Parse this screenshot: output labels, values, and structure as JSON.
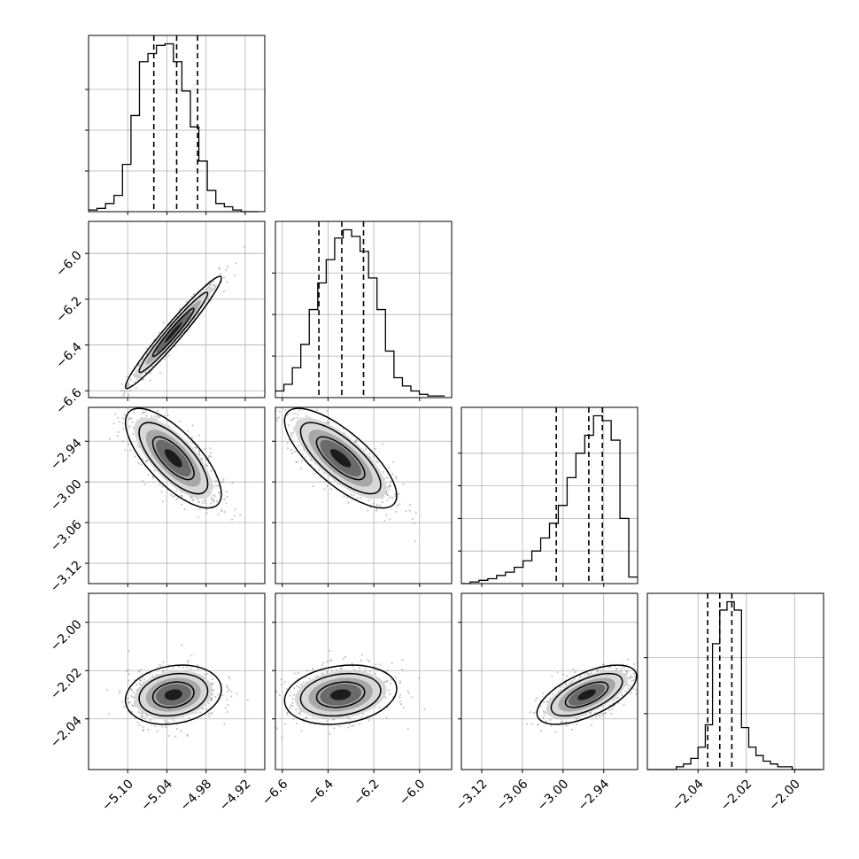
{
  "chart_data": {
    "type": "corner",
    "grid": true,
    "colors": {
      "frame": "#000000",
      "grid": "#b0b0b0",
      "scatter": "#9a9a9a",
      "contour": "#000000",
      "quantile": "#000000"
    },
    "parameters": [
      {
        "range": [
          -5.16,
          -4.89
        ],
        "ticks": [
          -5.1,
          -5.04,
          -4.98,
          -4.92
        ],
        "tick_labels": [
          "−5.10",
          "−5.04",
          "−4.98",
          "−4.92"
        ],
        "quantiles": [
          -5.06,
          -5.025,
          -4.993
        ],
        "hist_bins": [
          -5.16,
          -5.147,
          -5.134,
          -5.121,
          -5.108,
          -5.095,
          -5.082,
          -5.069,
          -5.056,
          -5.043,
          -5.03,
          -5.017,
          -5.004,
          -4.991,
          -4.978,
          -4.965,
          -4.952,
          -4.939,
          -4.926,
          -4.913,
          -4.9
        ],
        "hist_counts": [
          1,
          2,
          5,
          10,
          29,
          59,
          92,
          97,
          102,
          103,
          92,
          74,
          52,
          31,
          13,
          5,
          3,
          1,
          0,
          0
        ],
        "hist_yticks": [
          25,
          50,
          75
        ]
      },
      {
        "range": [
          -6.63,
          -5.86
        ],
        "ticks": [
          -6.6,
          -6.4,
          -6.2,
          -6.0
        ],
        "tick_labels": [
          "−6.6",
          "−6.4",
          "−6.2",
          "−6.0"
        ],
        "quantiles": [
          -6.44,
          -6.34,
          -6.245
        ],
        "hist_bins": [
          -6.63,
          -6.593,
          -6.556,
          -6.519,
          -6.482,
          -6.445,
          -6.408,
          -6.371,
          -6.334,
          -6.297,
          -6.26,
          -6.223,
          -6.186,
          -6.149,
          -6.112,
          -6.075,
          -6.038,
          -6.001,
          -5.964,
          -5.927,
          -5.89
        ],
        "hist_counts": [
          4,
          8,
          18,
          32,
          53,
          69,
          83,
          96,
          101,
          97,
          88,
          72,
          53,
          28,
          12,
          7,
          4,
          2,
          1,
          1
        ],
        "hist_yticks": [
          25,
          50,
          75
        ]
      },
      {
        "range": [
          -3.15,
          -2.89
        ],
        "ticks": [
          -3.12,
          -3.06,
          -3.0,
          -2.94
        ],
        "tick_labels": [
          "−3.12",
          "−3.06",
          "−3.00",
          "−2.94"
        ],
        "quantiles": [
          -3.01,
          -2.962,
          -2.942
        ],
        "hist_bins": [
          -3.15,
          -3.137,
          -3.124,
          -3.111,
          -3.098,
          -3.085,
          -3.072,
          -3.059,
          -3.046,
          -3.033,
          -3.02,
          -3.007,
          -2.994,
          -2.981,
          -2.968,
          -2.955,
          -2.942,
          -2.929,
          -2.916,
          -2.903,
          -2.89
        ],
        "hist_counts": [
          0,
          1,
          2,
          3,
          5,
          7,
          10,
          14,
          20,
          28,
          37,
          48,
          65,
          80,
          91,
          103,
          100,
          88,
          40,
          4
        ],
        "hist_yticks": [
          20,
          40,
          60,
          80
        ]
      },
      {
        "range": [
          -2.061,
          -1.988
        ],
        "ticks": [
          -2.04,
          -2.02,
          -2.0
        ],
        "tick_labels": [
          "−2.04",
          "−2.02",
          "−2.00"
        ],
        "quantiles": [
          -2.036,
          -2.031,
          -2.026
        ],
        "hist_bins": [
          -2.061,
          -2.058,
          -2.055,
          -2.052,
          -2.049,
          -2.046,
          -2.043,
          -2.04,
          -2.037,
          -2.034,
          -2.031,
          -2.028,
          -2.025,
          -2.022,
          -2.019,
          -2.016,
          -2.013,
          -2.01,
          -2.007,
          -2.004,
          -2.001,
          -1.998,
          -1.995,
          -1.992,
          -1.989
        ],
        "hist_counts": [
          0,
          0,
          0,
          0,
          1,
          2,
          4,
          8,
          16,
          45,
          57,
          60,
          57,
          15,
          8,
          5,
          3,
          2,
          1,
          1,
          0,
          0,
          0,
          0
        ],
        "hist_yticks": [
          20,
          40
        ]
      }
    ],
    "pairs": [
      {
        "col": 0,
        "row": 1,
        "mean": [
          -5.03,
          -6.345
        ],
        "sd": [
          0.03,
          0.1
        ],
        "rho": 0.97
      },
      {
        "col": 0,
        "row": 2,
        "mean": [
          -5.03,
          -2.965
        ],
        "sd": [
          0.03,
          0.03
        ],
        "rho": -0.72
      },
      {
        "col": 1,
        "row": 2,
        "mean": [
          -6.345,
          -2.965
        ],
        "sd": [
          0.1,
          0.03
        ],
        "rho": -0.75
      },
      {
        "col": 0,
        "row": 3,
        "mean": [
          -5.03,
          -2.03
        ],
        "sd": [
          0.03,
          0.005
        ],
        "rho": 0.18
      },
      {
        "col": 1,
        "row": 3,
        "mean": [
          -6.345,
          -2.03
        ],
        "sd": [
          0.1,
          0.005
        ],
        "rho": 0.2
      },
      {
        "col": 2,
        "row": 3,
        "mean": [
          -2.965,
          -2.03
        ],
        "sd": [
          0.03,
          0.005
        ],
        "rho": 0.62
      }
    ]
  }
}
